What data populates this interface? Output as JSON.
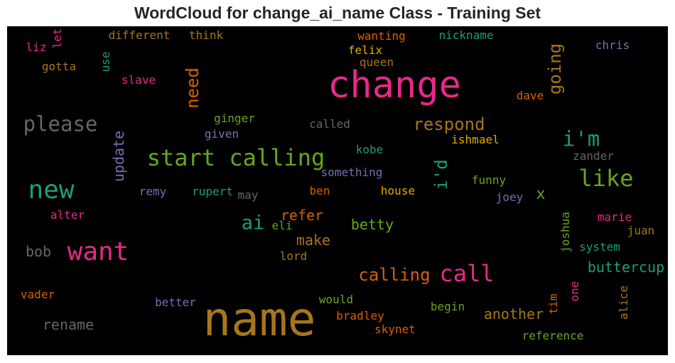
{
  "title": "WordCloud for change_ai_name Class - Training Set",
  "chart_data": {
    "type": "wordcloud",
    "title": "WordCloud for change_ai_name Class - Training Set",
    "background": "#000000",
    "palette": {
      "magenta": "#e7298a",
      "teal": "#1b9e77",
      "orange": "#d95f02",
      "olive": "#a6761d",
      "green": "#66a61e",
      "gold": "#e6ab02",
      "purple": "#7570b3",
      "gray": "#666666"
    },
    "words": [
      {
        "text": "change",
        "color": "#e7298a"
      },
      {
        "text": "name",
        "color": "#a6761d"
      },
      {
        "text": "want",
        "color": "#e7298a"
      },
      {
        "text": "start calling",
        "color": "#66a61e"
      },
      {
        "text": "new",
        "color": "#1b9e77"
      },
      {
        "text": "like",
        "color": "#66a61e"
      },
      {
        "text": "please",
        "color": "#666666"
      },
      {
        "text": "call",
        "color": "#e7298a"
      },
      {
        "text": "i'm",
        "color": "#1b9e77"
      },
      {
        "text": "calling",
        "color": "#d95f02"
      },
      {
        "text": "respond",
        "color": "#a6761d"
      },
      {
        "text": "going",
        "color": "#a6761d"
      },
      {
        "text": "need",
        "color": "#d95f02"
      },
      {
        "text": "ai",
        "color": "#1b9e77"
      },
      {
        "text": "update",
        "color": "#7570b3"
      },
      {
        "text": "i'd",
        "color": "#1b9e77"
      },
      {
        "text": "another",
        "color": "#a6761d"
      },
      {
        "text": "buttercup",
        "color": "#1b9e77"
      },
      {
        "text": "rename",
        "color": "#666666"
      },
      {
        "text": "refer",
        "color": "#d95f02"
      },
      {
        "text": "make",
        "color": "#a6761d"
      },
      {
        "text": "betty",
        "color": "#66a61e"
      },
      {
        "text": "bob",
        "color": "#666666"
      },
      {
        "text": "x",
        "color": "#66a61e"
      },
      {
        "text": "different",
        "color": "#a6761d"
      },
      {
        "text": "think",
        "color": "#a6761d"
      },
      {
        "text": "wanting",
        "color": "#d95f02"
      },
      {
        "text": "nickname",
        "color": "#1b9e77"
      },
      {
        "text": "chris",
        "color": "#7570b3"
      },
      {
        "text": "liz",
        "color": "#e7298a"
      },
      {
        "text": "let",
        "color": "#e7298a"
      },
      {
        "text": "use",
        "color": "#1b9e77"
      },
      {
        "text": "felix",
        "color": "#e6ab02"
      },
      {
        "text": "queen",
        "color": "#a6761d"
      },
      {
        "text": "gotta",
        "color": "#a6761d"
      },
      {
        "text": "slave",
        "color": "#e7298a"
      },
      {
        "text": "dave",
        "color": "#d95f02"
      },
      {
        "text": "ginger",
        "color": "#66a61e"
      },
      {
        "text": "called",
        "color": "#666666"
      },
      {
        "text": "given",
        "color": "#7570b3"
      },
      {
        "text": "ishmael",
        "color": "#e6ab02"
      },
      {
        "text": "zander",
        "color": "#666666"
      },
      {
        "text": "kobe",
        "color": "#1b9e77"
      },
      {
        "text": "something",
        "color": "#7570b3"
      },
      {
        "text": "funny",
        "color": "#66a61e"
      },
      {
        "text": "remy",
        "color": "#7570b3"
      },
      {
        "text": "rupert",
        "color": "#1b9e77"
      },
      {
        "text": "may",
        "color": "#666666"
      },
      {
        "text": "ben",
        "color": "#d95f02"
      },
      {
        "text": "house",
        "color": "#e6ab02"
      },
      {
        "text": "joey",
        "color": "#7570b3"
      },
      {
        "text": "alter",
        "color": "#e7298a"
      },
      {
        "text": "eli",
        "color": "#66a61e"
      },
      {
        "text": "joshua",
        "color": "#66a61e"
      },
      {
        "text": "marie",
        "color": "#e7298a"
      },
      {
        "text": "juan",
        "color": "#a6761d"
      },
      {
        "text": "system",
        "color": "#1b9e77"
      },
      {
        "text": "lord",
        "color": "#a6761d"
      },
      {
        "text": "vader",
        "color": "#d95f02"
      },
      {
        "text": "better",
        "color": "#7570b3"
      },
      {
        "text": "would",
        "color": "#66a61e"
      },
      {
        "text": "one",
        "color": "#e7298a"
      },
      {
        "text": "alice",
        "color": "#a6761d"
      },
      {
        "text": "tim",
        "color": "#d95f02"
      },
      {
        "text": "begin",
        "color": "#66a61e"
      },
      {
        "text": "bradley",
        "color": "#d95f02"
      },
      {
        "text": "skynet",
        "color": "#d95f02"
      },
      {
        "text": "reference",
        "color": "#66a61e"
      }
    ]
  }
}
